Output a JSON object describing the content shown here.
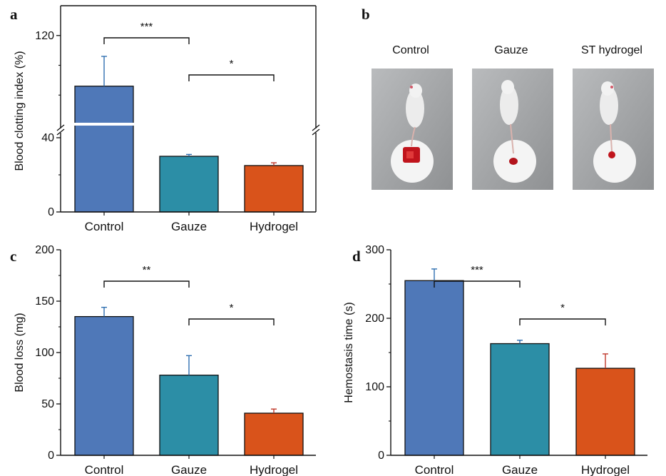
{
  "colors": {
    "control": "#4f78b8",
    "gauze": "#2c8ea6",
    "hydrogel": "#d9531b",
    "error": "#2f6fb0",
    "axis": "#111111",
    "errorRed": "#c0392b"
  },
  "panels": {
    "a": {
      "letter": "a"
    },
    "b": {
      "letter": "b",
      "photos": [
        {
          "label": "Control"
        },
        {
          "label": "Gauze"
        },
        {
          "label": "ST hydrogel"
        }
      ]
    },
    "c": {
      "letter": "c"
    },
    "d": {
      "letter": "d"
    }
  },
  "chart_data": [
    {
      "id": "a",
      "type": "bar",
      "title": "",
      "xlabel": "",
      "ylabel": "Blood clotting index (%)",
      "categories": [
        "Control",
        "Gauze",
        "Hydrogel"
      ],
      "values": [
        103,
        30,
        25
      ],
      "errors": [
        10,
        1,
        1.5
      ],
      "yticks": [
        0,
        40,
        120
      ],
      "axis_break": [
        46,
        90
      ],
      "ylim": [
        0,
        130
      ],
      "significance": [
        {
          "from": 0,
          "to": 1,
          "label": "***"
        },
        {
          "from": 1,
          "to": 2,
          "label": "*"
        }
      ]
    },
    {
      "id": "c",
      "type": "bar",
      "title": "",
      "xlabel": "",
      "ylabel": "Blood loss (mg)",
      "categories": [
        "Control",
        "Gauze",
        "Hydrogel"
      ],
      "values": [
        135,
        78,
        41
      ],
      "errors": [
        9,
        19,
        4
      ],
      "yticks": [
        0,
        50,
        100,
        150,
        200
      ],
      "ylim": [
        0,
        200
      ],
      "significance": [
        {
          "from": 0,
          "to": 1,
          "label": "**"
        },
        {
          "from": 1,
          "to": 2,
          "label": "*"
        }
      ]
    },
    {
      "id": "d",
      "type": "bar",
      "title": "",
      "xlabel": "",
      "ylabel": "Hemostasis time (s)",
      "categories": [
        "Control",
        "Gauze",
        "Hydrogel"
      ],
      "values": [
        255,
        163,
        127
      ],
      "errors": [
        17,
        5,
        21
      ],
      "yticks": [
        0,
        100,
        200,
        300
      ],
      "ylim": [
        0,
        300
      ],
      "significance": [
        {
          "from": 0,
          "to": 1,
          "label": "***"
        },
        {
          "from": 1,
          "to": 2,
          "label": "*"
        }
      ]
    }
  ]
}
